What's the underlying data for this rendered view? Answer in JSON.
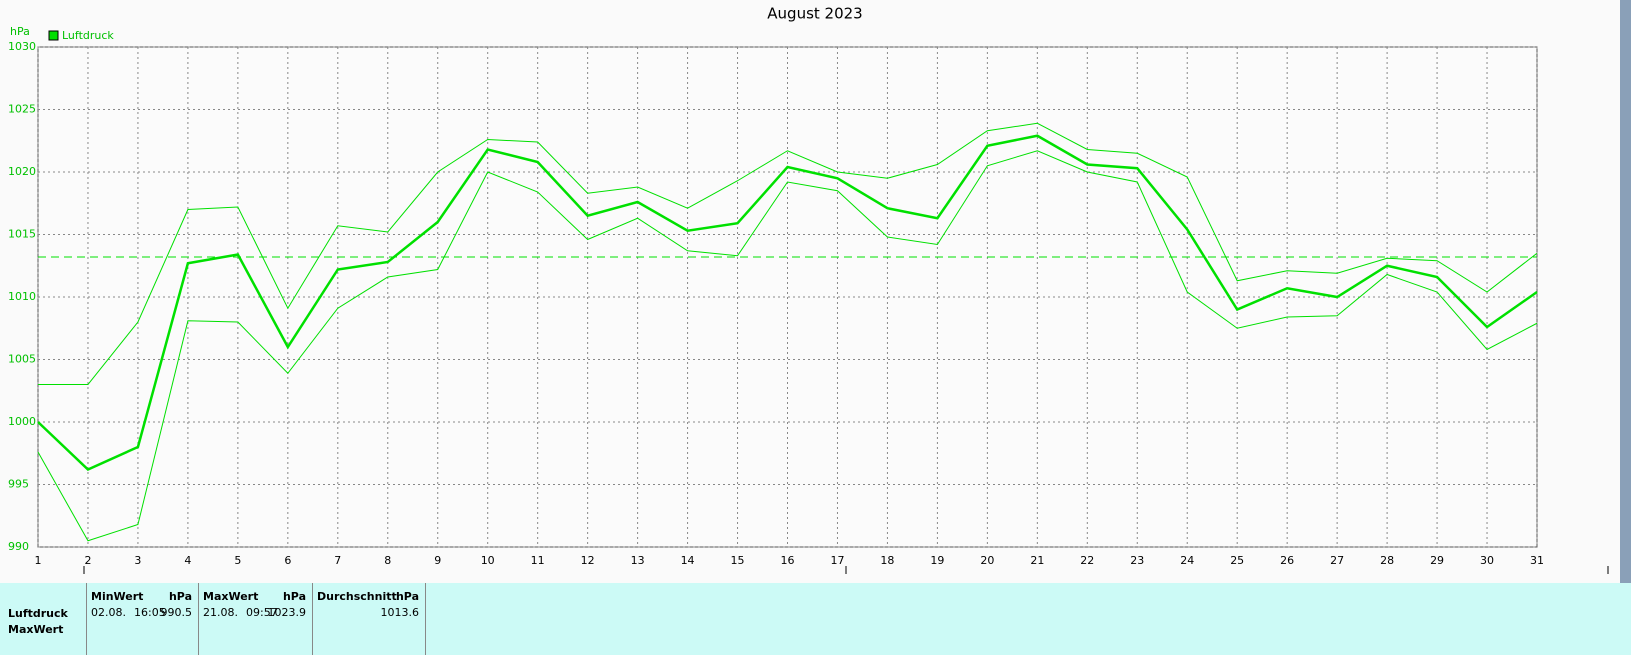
{
  "chart_data": {
    "type": "line",
    "title": "August 2023",
    "y_unit": "hPa",
    "x": [
      1,
      2,
      3,
      4,
      5,
      6,
      7,
      8,
      9,
      10,
      11,
      12,
      13,
      14,
      15,
      16,
      17,
      18,
      19,
      20,
      21,
      22,
      23,
      24,
      25,
      26,
      27,
      28,
      29,
      30,
      31
    ],
    "xlim": [
      1,
      31
    ],
    "xticks": [
      1,
      2,
      3,
      4,
      5,
      6,
      7,
      8,
      9,
      10,
      11,
      12,
      13,
      14,
      15,
      16,
      17,
      18,
      19,
      20,
      21,
      22,
      23,
      24,
      25,
      26,
      27,
      28,
      29,
      30,
      31
    ],
    "ylim": [
      990,
      1030
    ],
    "yticks": [
      990,
      995,
      1000,
      1005,
      1010,
      1015,
      1020,
      1025,
      1030
    ],
    "grid": true,
    "hline": 1013.2,
    "series": [
      {
        "name": "Luftdruck",
        "color": "#00e000",
        "values": [
          1000.0,
          996.2,
          998.0,
          1012.7,
          1013.4,
          1006.0,
          1012.2,
          1012.8,
          1016.0,
          1021.8,
          1020.8,
          1016.5,
          1017.6,
          1015.3,
          1015.9,
          1020.4,
          1019.5,
          1017.1,
          1016.3,
          1022.1,
          1022.9,
          1020.6,
          1020.3,
          1015.4,
          1009.0,
          1010.7,
          1010.0,
          1012.5,
          1011.6,
          1007.6,
          1010.4
        ]
      },
      {
        "color": "#00e000",
        "values": [
          1003.0,
          1003.0,
          1008.0,
          1017.0,
          1017.2,
          1009.1,
          1015.7,
          1015.2,
          1020.0,
          1022.6,
          1022.4,
          1018.3,
          1018.8,
          1017.1,
          1019.3,
          1021.7,
          1020.0,
          1019.5,
          1020.6,
          1023.3,
          1023.9,
          1021.8,
          1021.5,
          1019.6,
          1011.3,
          1012.1,
          1011.9,
          1013.1,
          1012.9,
          1010.4,
          1013.5
        ]
      },
      {
        "color": "#00e000",
        "values": [
          997.6,
          990.5,
          991.8,
          1008.1,
          1008.0,
          1003.9,
          1009.1,
          1011.6,
          1012.2,
          1020.0,
          1018.4,
          1014.6,
          1016.3,
          1013.7,
          1013.3,
          1019.2,
          1018.5,
          1014.8,
          1014.2,
          1020.5,
          1021.7,
          1020.0,
          1019.2,
          1010.4,
          1007.5,
          1008.4,
          1008.5,
          1011.8,
          1010.4,
          1005.8,
          1007.9
        ]
      }
    ]
  },
  "table": {
    "row_labels": [
      "Luftdruck",
      "MaxWert"
    ],
    "columns": [
      {
        "header": "MinWert",
        "unit": "hPa",
        "date": "02.08.",
        "time": "16:05",
        "value": 990.5
      },
      {
        "header": "MaxWert",
        "unit": "hPa",
        "date": "21.08.",
        "time": "09:57",
        "value": 1023.9
      },
      {
        "header": "Durchschnitt",
        "unit": "hPa",
        "value": 1013.6
      }
    ]
  }
}
